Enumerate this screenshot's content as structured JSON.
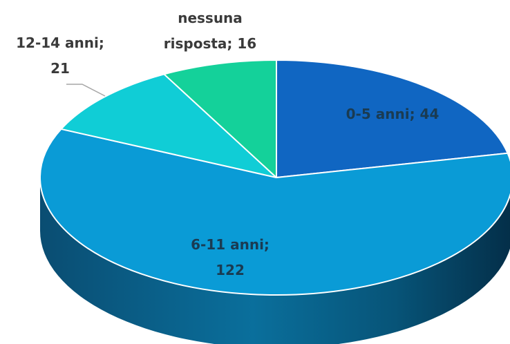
{
  "chart_data": {
    "type": "pie",
    "title": "",
    "three_d": true,
    "categories": [
      "0-5 anni",
      "6-11 anni",
      "12-14 anni",
      "nessuna risposta"
    ],
    "values": [
      44,
      122,
      21,
      16
    ],
    "colors": [
      "#1066c2",
      "#0a9bd6",
      "#10cdd6",
      "#14d19a"
    ],
    "data_labels": [
      {
        "lines": [
          "0-5 anni; 44"
        ],
        "color": "#1a3b52"
      },
      {
        "lines": [
          "6-11 anni;",
          "122"
        ],
        "color": "#1a3b52"
      },
      {
        "lines": [
          "12-14 anni;",
          "21"
        ],
        "color": "#3a3a3a"
      },
      {
        "lines": [
          "nessuna",
          "risposta; 16"
        ],
        "color": "#3a3a3a"
      }
    ]
  }
}
